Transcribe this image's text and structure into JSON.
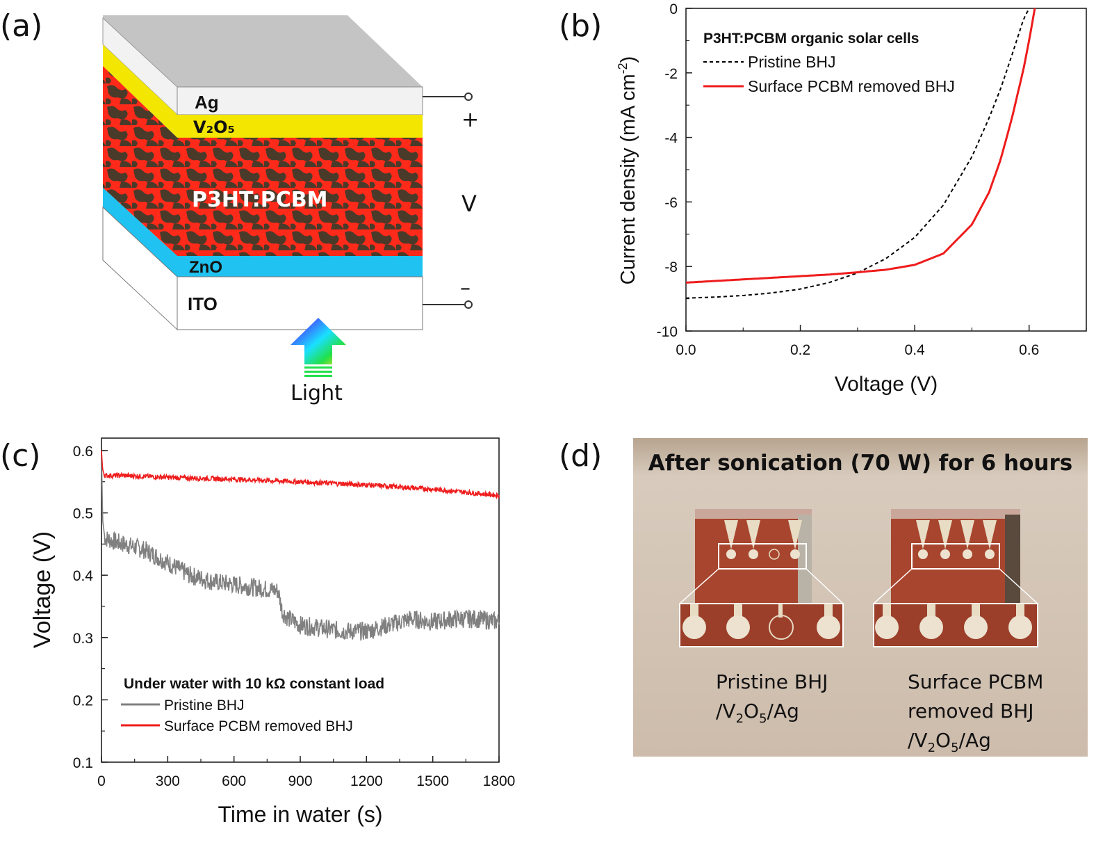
{
  "panels": {
    "a": {
      "label": "(a)",
      "layers": {
        "ag": "Ag",
        "v2o5": "V₂O₅",
        "active": "P3HT:PCBM",
        "zno": "ZnO",
        "ito": "ITO"
      },
      "plus": "+",
      "minus": "–",
      "voltage": "V",
      "light": "Light",
      "colors": {
        "ag_top": "#c4c4c4",
        "ag_front": "#f2f2f2",
        "v2o5": "#f3e600",
        "active_red": "#ff2a1a",
        "active_dark": "#4a3a2a",
        "zno": "#1fc2f0"
      }
    },
    "b": {
      "label": "(b)",
      "legend_title": "P3HT:PCBM organic solar cells",
      "xlabel": "Voltage (V)",
      "ylabel_main": "Current density (mA cm",
      "ylabel_sup": "-2",
      "ylabel_end": ")",
      "x_ticks": [
        "0.0",
        "0.2",
        "0.4",
        "0.6"
      ],
      "y_ticks": [
        "0",
        "-2",
        "-4",
        "-6",
        "-8",
        "-10"
      ]
    },
    "c": {
      "label": "(c)",
      "legend_title": "Under water with 10 kΩ constant load",
      "xlabel": "Time in water (s)",
      "ylabel": "Voltage (V)",
      "x_ticks": [
        "0",
        "300",
        "600",
        "900",
        "1200",
        "1500",
        "1800"
      ],
      "y_ticks": [
        "0.1",
        "0.2",
        "0.3",
        "0.4",
        "0.5",
        "0.6"
      ]
    },
    "d": {
      "label": "(d)",
      "title": "After sonication (70 W) for 6 hours",
      "caption_left_1": "Pristine BHJ",
      "caption_left_2a": "/V",
      "caption_left_2sub": "2",
      "caption_left_2b": "O",
      "caption_left_2sub2": "5",
      "caption_left_2c": "/Ag",
      "caption_right_1": "Surface PCBM",
      "caption_right_2": "removed BHJ",
      "caption_right_3a": "/V",
      "caption_right_3sub": "2",
      "caption_right_3b": "O",
      "caption_right_3sub2": "5",
      "caption_right_3c": "/Ag"
    }
  },
  "chart_data": [
    {
      "type": "line",
      "panel": "b",
      "title": "",
      "xlabel": "Voltage (V)",
      "ylabel": "Current density (mA cm-2)",
      "xlim": [
        0.0,
        0.7
      ],
      "ylim": [
        -10,
        0
      ],
      "legend_title": "P3HT:PCBM organic solar cells",
      "legend_position": "top-left",
      "series": [
        {
          "name": "Pristine BHJ",
          "color": "#000000",
          "dash": "dashed",
          "x": [
            0.0,
            0.05,
            0.1,
            0.15,
            0.2,
            0.25,
            0.3,
            0.35,
            0.4,
            0.45,
            0.5,
            0.53,
            0.55,
            0.57,
            0.58,
            0.59,
            0.6
          ],
          "y": [
            -8.98,
            -8.95,
            -8.9,
            -8.82,
            -8.7,
            -8.5,
            -8.2,
            -7.75,
            -7.1,
            -6.1,
            -4.6,
            -3.4,
            -2.5,
            -1.45,
            -0.9,
            -0.35,
            0.0
          ]
        },
        {
          "name": "Surface PCBM removed BHJ",
          "color": "#ee1c1c",
          "dash": "solid",
          "x": [
            0.0,
            0.05,
            0.1,
            0.15,
            0.2,
            0.25,
            0.3,
            0.35,
            0.4,
            0.45,
            0.5,
            0.53,
            0.55,
            0.57,
            0.59,
            0.6,
            0.61
          ],
          "y": [
            -8.5,
            -8.45,
            -8.4,
            -8.35,
            -8.3,
            -8.25,
            -8.18,
            -8.1,
            -7.95,
            -7.6,
            -6.7,
            -5.7,
            -4.7,
            -3.4,
            -1.9,
            -1.0,
            0.0
          ]
        }
      ]
    },
    {
      "type": "line",
      "panel": "c",
      "title": "",
      "xlabel": "Time in water (s)",
      "ylabel": "Voltage (V)",
      "xlim": [
        0,
        1800
      ],
      "ylim": [
        0.1,
        0.62
      ],
      "legend_title": "Under water with 10 kΩ constant load",
      "legend_position": "bottom-left",
      "series": [
        {
          "name": "Pristine BHJ",
          "color": "#808080",
          "x": [
            0,
            5,
            15,
            50,
            100,
            200,
            300,
            400,
            500,
            600,
            700,
            800,
            820,
            850,
            900,
            1000,
            1100,
            1200,
            1300,
            1400,
            1500,
            1600,
            1700,
            1800
          ],
          "y": [
            0.6,
            0.49,
            0.46,
            0.455,
            0.45,
            0.44,
            0.42,
            0.4,
            0.39,
            0.385,
            0.38,
            0.375,
            0.34,
            0.33,
            0.32,
            0.315,
            0.31,
            0.31,
            0.32,
            0.33,
            0.325,
            0.33,
            0.33,
            0.325
          ],
          "noise": 0.015
        },
        {
          "name": "Surface PCBM removed BHJ",
          "color": "#ee1c1c",
          "x": [
            0,
            5,
            15,
            100,
            300,
            600,
            900,
            1200,
            1500,
            1800
          ],
          "y": [
            0.6,
            0.57,
            0.56,
            0.56,
            0.557,
            0.554,
            0.55,
            0.545,
            0.538,
            0.528
          ],
          "noise": 0.004
        }
      ]
    }
  ]
}
